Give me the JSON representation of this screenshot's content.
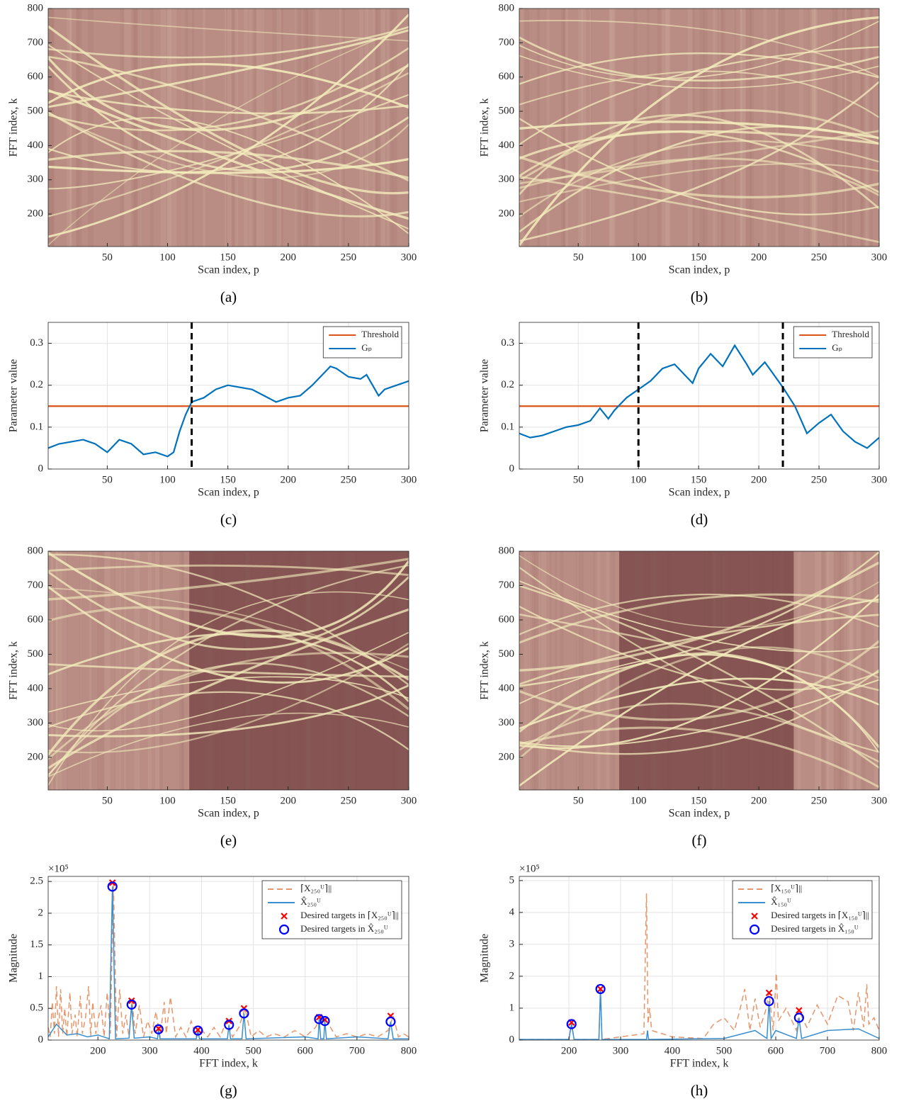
{
  "chart_data": [
    {
      "type": "heatmap",
      "caption": "(a)",
      "xlabel": "Scan index, p",
      "ylabel": "FFT index, k",
      "xlim": [
        1,
        300
      ],
      "ylim": [
        105,
        800
      ],
      "xticks": [
        50,
        100,
        150,
        200,
        250,
        300
      ],
      "yticks": [
        200,
        300,
        400,
        500,
        600,
        700,
        800
      ]
    },
    {
      "type": "heatmap",
      "caption": "(b)",
      "xlabel": "Scan index, p",
      "ylabel": "FFT index, k",
      "xlim": [
        1,
        300
      ],
      "ylim": [
        105,
        800
      ],
      "xticks": [
        50,
        100,
        150,
        200,
        250,
        300
      ],
      "yticks": [
        200,
        300,
        400,
        500,
        600,
        700,
        800
      ]
    },
    {
      "type": "line",
      "caption": "(c)",
      "xlabel": "Scan index, p",
      "ylabel": "Parameter value",
      "xlim": [
        1,
        300
      ],
      "ylim": [
        0,
        0.35
      ],
      "xticks": [
        50,
        100,
        150,
        200,
        250,
        300
      ],
      "yticks": [
        0,
        0.1,
        0.2,
        0.3
      ],
      "grid": true,
      "legend": "top-right",
      "vlines": [
        120
      ],
      "series": [
        {
          "name": "Threshold",
          "color": "#D95319",
          "x": [
            1,
            300
          ],
          "values": [
            0.15,
            0.15
          ]
        },
        {
          "name": "Gₚ",
          "color": "#0072BD",
          "x": [
            1,
            10,
            20,
            30,
            40,
            50,
            60,
            70,
            80,
            90,
            100,
            105,
            110,
            115,
            120,
            130,
            140,
            150,
            160,
            170,
            180,
            190,
            200,
            210,
            220,
            230,
            235,
            240,
            250,
            260,
            265,
            270,
            275,
            280,
            290,
            300
          ],
          "values": [
            0.05,
            0.06,
            0.065,
            0.07,
            0.06,
            0.04,
            0.07,
            0.06,
            0.035,
            0.04,
            0.03,
            0.04,
            0.09,
            0.13,
            0.16,
            0.17,
            0.19,
            0.2,
            0.195,
            0.19,
            0.175,
            0.16,
            0.17,
            0.175,
            0.2,
            0.23,
            0.245,
            0.24,
            0.22,
            0.215,
            0.225,
            0.2,
            0.175,
            0.19,
            0.2,
            0.21
          ]
        }
      ]
    },
    {
      "type": "line",
      "caption": "(d)",
      "xlabel": "Scan index, p",
      "ylabel": "Parameter value",
      "xlim": [
        1,
        300
      ],
      "ylim": [
        0,
        0.35
      ],
      "xticks": [
        50,
        100,
        150,
        200,
        250,
        300
      ],
      "yticks": [
        0,
        0.1,
        0.2,
        0.3
      ],
      "grid": true,
      "legend": "top-right",
      "vlines": [
        100,
        220
      ],
      "series": [
        {
          "name": "Threshold",
          "color": "#D95319",
          "x": [
            1,
            300
          ],
          "values": [
            0.15,
            0.15
          ]
        },
        {
          "name": "Gₚ",
          "color": "#0072BD",
          "x": [
            1,
            10,
            20,
            30,
            40,
            50,
            60,
            68,
            75,
            80,
            90,
            100,
            110,
            120,
            130,
            140,
            145,
            150,
            160,
            165,
            170,
            180,
            190,
            195,
            200,
            205,
            210,
            220,
            230,
            240,
            250,
            260,
            270,
            280,
            290,
            300
          ],
          "values": [
            0.085,
            0.075,
            0.08,
            0.09,
            0.1,
            0.105,
            0.115,
            0.145,
            0.12,
            0.14,
            0.17,
            0.19,
            0.21,
            0.24,
            0.25,
            0.22,
            0.205,
            0.24,
            0.275,
            0.26,
            0.245,
            0.295,
            0.25,
            0.225,
            0.24,
            0.255,
            0.235,
            0.195,
            0.15,
            0.085,
            0.11,
            0.13,
            0.09,
            0.065,
            0.05,
            0.075
          ]
        }
      ]
    },
    {
      "type": "heatmap",
      "caption": "(e)",
      "xlabel": "Scan index, p",
      "ylabel": "FFT index, k",
      "xlim": [
        1,
        300
      ],
      "ylim": [
        105,
        800
      ],
      "xticks": [
        50,
        100,
        150,
        200,
        250,
        300
      ],
      "yticks": [
        200,
        300,
        400,
        500,
        600,
        700,
        800
      ],
      "dark_span": [
        118,
        300
      ]
    },
    {
      "type": "heatmap",
      "caption": "(f)",
      "xlabel": "Scan index, p",
      "ylabel": "FFT index, k",
      "xlim": [
        1,
        300
      ],
      "ylim": [
        105,
        800
      ],
      "xticks": [
        50,
        100,
        150,
        200,
        250,
        300
      ],
      "yticks": [
        200,
        300,
        400,
        500,
        600,
        700,
        800
      ],
      "dark_span": [
        84,
        229
      ]
    },
    {
      "type": "line",
      "caption": "(g)",
      "xlabel": "FFT index, k",
      "ylabel": "Magnitude",
      "y_multiplier": "×10⁵",
      "xlim": [
        104,
        800
      ],
      "ylim": [
        0,
        2.58
      ],
      "xticks": [
        200,
        300,
        400,
        500,
        600,
        700,
        800
      ],
      "yticks": [
        0,
        0.5,
        1,
        1.5,
        2,
        2.5
      ],
      "grid": true,
      "legend": "top-right",
      "series": [
        {
          "name": "⌈X₂₅₀ᵁ⌉||",
          "color": "#E8956A",
          "style": "dashed",
          "x": [
            104,
            108,
            112,
            116,
            120,
            124,
            128,
            132,
            136,
            140,
            146,
            150,
            156,
            160,
            166,
            170,
            176,
            182,
            186,
            190,
            196,
            200,
            206,
            212,
            218,
            224,
            230,
            236,
            242,
            248,
            254,
            260,
            266,
            272,
            280,
            288,
            296,
            304,
            312,
            320,
            328,
            332,
            340,
            350,
            360,
            370,
            380,
            390,
            400,
            412,
            424,
            436,
            448,
            460,
            472,
            484,
            496,
            510,
            525,
            540,
            560,
            580,
            600,
            620,
            630,
            640,
            660,
            680,
            700,
            720,
            740,
            760,
            770,
            780,
            790,
            800
          ],
          "values": [
            0.2,
            0.05,
            0.6,
            0.1,
            0.85,
            0.05,
            0.8,
            0.1,
            0.5,
            0.05,
            0.75,
            0.1,
            0.4,
            0.05,
            0.7,
            0.1,
            0.35,
            0.85,
            0.05,
            0.6,
            0.1,
            0.3,
            0.55,
            0.05,
            0.75,
            0.1,
            2.48,
            0.05,
            0.8,
            0.1,
            0.4,
            0.05,
            0.62,
            0.1,
            0.55,
            0.05,
            0.3,
            0.1,
            0.45,
            0.05,
            0.6,
            0.1,
            0.68,
            0.05,
            0.2,
            0.05,
            0.3,
            0.05,
            0.16,
            0.05,
            0.2,
            0.05,
            0.3,
            0.05,
            0.2,
            0.5,
            0.05,
            0.15,
            0.05,
            0.1,
            0.05,
            0.15,
            0.05,
            0.2,
            0.36,
            0.32,
            0.05,
            0.1,
            0.05,
            0.1,
            0.05,
            0.15,
            0.38,
            0.05,
            0.1,
            0.05
          ]
        },
        {
          "name": "X̂₂₅₀ᵁ",
          "color": "#3A8FD0",
          "x": [
            104,
            120,
            140,
            160,
            180,
            200,
            222,
            228,
            234,
            260,
            265,
            270,
            300,
            315,
            317,
            320,
            390,
            393,
            396,
            450,
            453,
            456,
            478,
            482,
            486,
            600,
            625,
            627,
            630,
            636,
            638,
            641,
            700,
            760,
            765,
            770,
            800
          ],
          "values": [
            0.05,
            0.25,
            0.08,
            0.1,
            0.05,
            0.08,
            0.02,
            2.42,
            0.02,
            0.03,
            0.56,
            0.03,
            0.05,
            0.02,
            0.17,
            0.02,
            0.02,
            0.15,
            0.02,
            0.02,
            0.24,
            0.02,
            0.02,
            0.42,
            0.02,
            0.05,
            0.02,
            0.33,
            0.02,
            0.02,
            0.3,
            0.02,
            0.05,
            0.02,
            0.29,
            0.02,
            0.02
          ]
        },
        {
          "name": "Desired targets in ⌈X₂₅₀ᵁ⌉||",
          "color": "#FF0000",
          "marker": "x",
          "x": [
            228,
            265,
            317,
            393,
            453,
            482,
            627,
            638,
            765
          ],
          "values": [
            2.48,
            0.62,
            0.18,
            0.16,
            0.3,
            0.5,
            0.36,
            0.32,
            0.38
          ]
        },
        {
          "name": "Desired targets in X̂₂₅₀ᵁ",
          "color": "#0000FF",
          "marker": "o",
          "x": [
            228,
            265,
            317,
            393,
            453,
            482,
            627,
            638,
            765
          ],
          "values": [
            2.42,
            0.56,
            0.17,
            0.15,
            0.24,
            0.42,
            0.33,
            0.3,
            0.29
          ]
        }
      ]
    },
    {
      "type": "line",
      "caption": "(h)",
      "xlabel": "FFT index, k",
      "ylabel": "Magnitude",
      "y_multiplier": "×10⁵",
      "xlim": [
        104,
        800
      ],
      "ylim": [
        0,
        5.13
      ],
      "xticks": [
        200,
        300,
        400,
        500,
        600,
        700,
        800
      ],
      "yticks": [
        0,
        1,
        2,
        3,
        4,
        5
      ],
      "grid": true,
      "legend": "top-right",
      "series": [
        {
          "name": "⌈X₁₅₀ᵁ⌉||",
          "color": "#E8956A",
          "style": "dashed",
          "x": [
            104,
            200,
            205,
            210,
            258,
            261,
            264,
            300,
            345,
            350,
            353,
            356,
            360,
            400,
            460,
            480,
            500,
            520,
            530,
            540,
            550,
            560,
            570,
            580,
            587,
            595,
            601,
            605,
            620,
            640,
            645,
            660,
            680,
            700,
            720,
            740,
            750,
            760,
            770,
            776,
            780,
            790,
            800
          ],
          "values": [
            0.02,
            0.02,
            0.55,
            0.02,
            0.02,
            1.6,
            0.02,
            0.1,
            0.2,
            4.6,
            0.5,
            1.0,
            0.3,
            0.1,
            0.05,
            0.5,
            0.7,
            0.3,
            0.9,
            1.6,
            0.3,
            1.3,
            0.4,
            0.9,
            1.48,
            0.3,
            2.1,
            0.6,
            1.0,
            0.3,
            0.93,
            0.4,
            1.1,
            0.5,
            1.4,
            1.2,
            0.3,
            1.5,
            0.4,
            1.75,
            0.5,
            0.7,
            0.3
          ]
        },
        {
          "name": "X̂₁₅₀ᵁ",
          "color": "#3A8FD0",
          "x": [
            104,
            200,
            205,
            210,
            258,
            261,
            264,
            350,
            352,
            354,
            500,
            560,
            583,
            587,
            591,
            600,
            640,
            645,
            650,
            700,
            760,
            800
          ],
          "values": [
            0.02,
            0.02,
            0.5,
            0.02,
            0.02,
            1.6,
            0.02,
            0.02,
            0.3,
            0.02,
            0.05,
            0.3,
            0.05,
            1.22,
            0.05,
            0.3,
            0.05,
            0.7,
            0.05,
            0.3,
            0.35,
            0.05
          ]
        },
        {
          "name": "Desired targets in ⌈X₁₅₀ᵁ⌉||",
          "color": "#FF0000",
          "marker": "x",
          "x": [
            205,
            261,
            587,
            645
          ],
          "values": [
            0.55,
            1.6,
            1.48,
            0.93
          ]
        },
        {
          "name": "Desired targets in X̂₁₅₀ᵁ",
          "color": "#0000FF",
          "marker": "o",
          "x": [
            205,
            261,
            587,
            645
          ],
          "values": [
            0.5,
            1.6,
            1.22,
            0.7
          ]
        }
      ]
    }
  ]
}
